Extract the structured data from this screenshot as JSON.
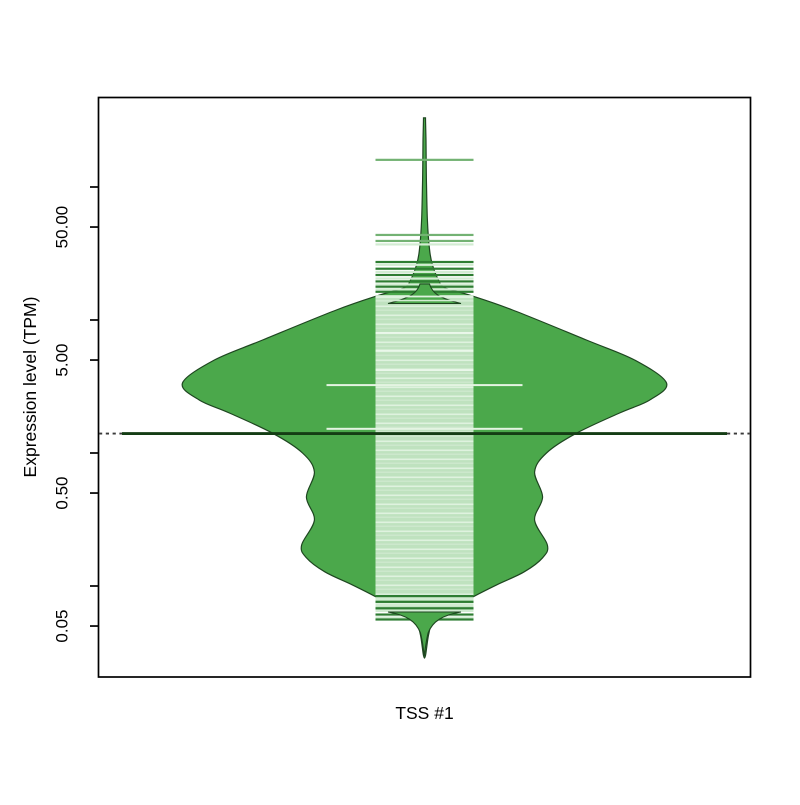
{
  "chart_data": {
    "type": "violin",
    "title": "",
    "xlabel": "TSS #1",
    "ylabel": "Expression level (TPM)",
    "y_scale": "log10",
    "y_axis_ticks": [
      {
        "value": 100,
        "label": ""
      },
      {
        "value": 50,
        "label": "50.00"
      },
      {
        "value": 10,
        "label": ""
      },
      {
        "value": 5,
        "label": "5.00"
      },
      {
        "value": 1,
        "label": ""
      },
      {
        "value": 0.5,
        "label": "0.50"
      },
      {
        "value": 0.1,
        "label": ""
      },
      {
        "value": 0.05,
        "label": "0.05"
      }
    ],
    "categories": [
      "TSS #1"
    ],
    "violin": {
      "category": "TSS #1",
      "median_tpm": 1.4,
      "min_tpm": 0.03,
      "max_tpm": 330,
      "mode_tpm": 3.4,
      "density_profile": [
        [
          331,
          0.004
        ],
        [
          224,
          0.006
        ],
        [
          113,
          0.008
        ],
        [
          56.5,
          0.012
        ],
        [
          33.6,
          0.021
        ],
        [
          25.9,
          0.033
        ],
        [
          20.0,
          0.058
        ],
        [
          17.5,
          0.083
        ],
        [
          15.4,
          0.186
        ],
        [
          11.9,
          0.364
        ],
        [
          7.07,
          0.669
        ],
        [
          5.0,
          0.868
        ],
        [
          3.36,
          1.0
        ],
        [
          2.5,
          0.93
        ],
        [
          2.0,
          0.806
        ],
        [
          1.41,
          0.628
        ],
        [
          1.0,
          0.504
        ],
        [
          0.72,
          0.455
        ],
        [
          0.467,
          0.488
        ],
        [
          0.313,
          0.455
        ],
        [
          0.203,
          0.508
        ],
        [
          0.163,
          0.488
        ],
        [
          0.128,
          0.413
        ],
        [
          0.102,
          0.298
        ],
        [
          0.081,
          0.19
        ],
        [
          0.066,
          0.107
        ],
        [
          0.054,
          0.037
        ],
        [
          0.043,
          0.017
        ],
        [
          0.03,
          0.004
        ]
      ],
      "dense_band": {
        "top_tpm": 15.4,
        "bottom_tpm": 0.064
      },
      "upper_sample_lines": [
        {
          "tpm": 160,
          "tone": "medium"
        },
        {
          "tpm": 43.6,
          "tone": "medium"
        },
        {
          "tpm": 39.3,
          "tone": "medium"
        },
        {
          "tpm": 37.0,
          "tone": "light"
        },
        {
          "tpm": 27.3,
          "tone": "dark"
        },
        {
          "tpm": 26.0,
          "tone": "light"
        },
        {
          "tpm": 24.3,
          "tone": "dark"
        },
        {
          "tpm": 23.0,
          "tone": "light"
        },
        {
          "tpm": 21.8,
          "tone": "dark"
        },
        {
          "tpm": 20.5,
          "tone": "light"
        },
        {
          "tpm": 19.5,
          "tone": "dark"
        },
        {
          "tpm": 18.5,
          "tone": "light"
        },
        {
          "tpm": 17.8,
          "tone": "dark"
        },
        {
          "tpm": 17.0,
          "tone": "light"
        },
        {
          "tpm": 16.3,
          "tone": "dark"
        }
      ],
      "lower_sample_lines": [
        {
          "tpm": 0.084,
          "tone": "dark"
        },
        {
          "tpm": 0.08,
          "tone": "light"
        },
        {
          "tpm": 0.076,
          "tone": "dark"
        },
        {
          "tpm": 0.072,
          "tone": "light"
        },
        {
          "tpm": 0.068,
          "tone": "dark"
        },
        {
          "tpm": 0.065,
          "tone": "light"
        },
        {
          "tpm": 0.061,
          "tone": "dark"
        },
        {
          "tpm": 0.058,
          "tone": "light"
        },
        {
          "tpm": 0.056,
          "tone": "dark"
        }
      ],
      "wide_sample_lines": [
        {
          "tpm": 3.24
        },
        {
          "tpm": 1.52
        }
      ],
      "band_highlight_lines": [
        {
          "tpm": 8.0
        },
        {
          "tpm": 5.9
        },
        {
          "tpm": 4.2
        }
      ]
    },
    "median_line_tpm": 1.4,
    "legend": null,
    "grid": false
  },
  "colors": {
    "violin_fill": "#4BA84B",
    "violin_outline": "#1E4620",
    "band_base": "#BFE2BF",
    "band_stripe_light": "#DFF2DF",
    "band_stripe_soft": "#CFE9CF",
    "sample_medium": "#73B273",
    "sample_dark": "#2E7D32",
    "sample_light": "#D2ECD2",
    "wide_light": "#E4F4E2",
    "median_solid": "#143D14",
    "median_dash": "#3A3A3A",
    "frame": "#000000"
  }
}
